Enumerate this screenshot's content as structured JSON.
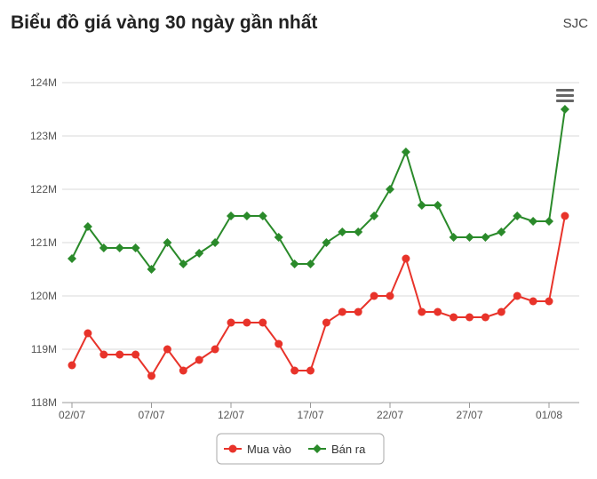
{
  "header": {
    "title": "Biểu đồ giá vàng 30 ngày gần nhất",
    "source": "SJC"
  },
  "menu_icon": "hamburger-menu-icon",
  "colors": {
    "buy": "#e8332a",
    "sell": "#2a8a2a",
    "grid": "#d8d8d8",
    "axis": "#999999"
  },
  "chart_data": {
    "type": "line",
    "title": "Biểu đồ giá vàng 30 ngày gần nhất",
    "xlabel": "",
    "ylabel": "",
    "ylim": [
      118,
      124
    ],
    "y_ticks": [
      "118M",
      "119M",
      "120M",
      "121M",
      "122M",
      "123M",
      "124M"
    ],
    "x_tick_labels": [
      "02/07",
      "07/07",
      "12/07",
      "17/07",
      "22/07",
      "27/07",
      "01/08"
    ],
    "x_tick_every": 5,
    "x": [
      "02/07",
      "03/07",
      "04/07",
      "05/07",
      "06/07",
      "07/07",
      "08/07",
      "09/07",
      "10/07",
      "11/07",
      "12/07",
      "13/07",
      "14/07",
      "15/07",
      "16/07",
      "17/07",
      "18/07",
      "19/07",
      "20/07",
      "21/07",
      "22/07",
      "23/07",
      "24/07",
      "25/07",
      "26/07",
      "27/07",
      "28/07",
      "29/07",
      "30/07",
      "31/07",
      "01/08",
      "02/08"
    ],
    "series": [
      {
        "name": "Mua vào",
        "color": "#e8332a",
        "marker": "circle",
        "values": [
          118.7,
          119.3,
          118.9,
          118.9,
          118.9,
          118.5,
          119.0,
          118.6,
          118.8,
          119.0,
          119.5,
          119.5,
          119.5,
          119.1,
          118.6,
          118.6,
          119.5,
          119.7,
          119.7,
          120.0,
          120.0,
          120.7,
          119.7,
          119.7,
          119.6,
          119.6,
          119.6,
          119.7,
          120.0,
          119.9,
          119.9,
          121.5
        ]
      },
      {
        "name": "Bán ra",
        "color": "#2a8a2a",
        "marker": "diamond",
        "values": [
          120.7,
          121.3,
          120.9,
          120.9,
          120.9,
          120.5,
          121.0,
          120.6,
          120.8,
          121.0,
          121.5,
          121.5,
          121.5,
          121.1,
          120.6,
          120.6,
          121.0,
          121.2,
          121.2,
          121.5,
          122.0,
          122.7,
          121.7,
          121.7,
          121.1,
          121.1,
          121.1,
          121.2,
          121.5,
          121.4,
          121.4,
          123.5
        ]
      }
    ],
    "grid": true,
    "legend_position": "bottom-center"
  }
}
